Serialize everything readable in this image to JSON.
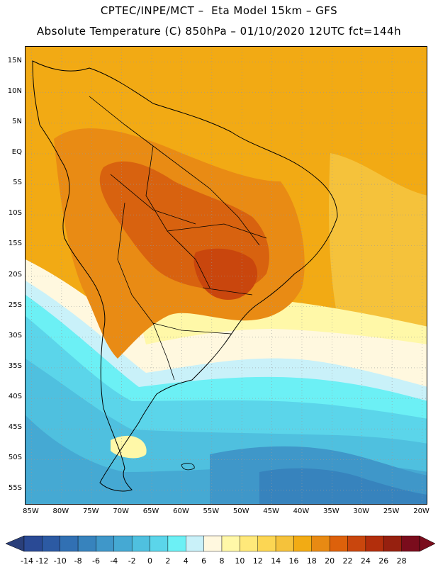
{
  "header": {
    "title_line1": "CPTEC/INPE/MCT –  Eta Model 15km – GFS",
    "title_line2": "Absolute Temperature (C) 850hPa – 01/10/2020 12UTC fct=144h"
  },
  "axes": {
    "lat_labels": [
      {
        "text": "15N",
        "value": 15
      },
      {
        "text": "10N",
        "value": 10
      },
      {
        "text": "5N",
        "value": 5
      },
      {
        "text": "EQ",
        "value": 0
      },
      {
        "text": "5S",
        "value": -5
      },
      {
        "text": "10S",
        "value": -10
      },
      {
        "text": "15S",
        "value": -15
      },
      {
        "text": "20S",
        "value": -20
      },
      {
        "text": "25S",
        "value": -25
      },
      {
        "text": "30S",
        "value": -30
      },
      {
        "text": "35S",
        "value": -35
      },
      {
        "text": "40S",
        "value": -40
      },
      {
        "text": "45S",
        "value": -45
      },
      {
        "text": "50S",
        "value": -50
      },
      {
        "text": "55S",
        "value": -55
      }
    ],
    "lon_labels": [
      {
        "text": "85W",
        "value": -85
      },
      {
        "text": "80W",
        "value": -80
      },
      {
        "text": "75W",
        "value": -75
      },
      {
        "text": "70W",
        "value": -70
      },
      {
        "text": "65W",
        "value": -65
      },
      {
        "text": "60W",
        "value": -60
      },
      {
        "text": "55W",
        "value": -55
      },
      {
        "text": "50W",
        "value": -50
      },
      {
        "text": "45W",
        "value": -45
      },
      {
        "text": "40W",
        "value": -40
      },
      {
        "text": "35W",
        "value": -35
      },
      {
        "text": "30W",
        "value": -30
      },
      {
        "text": "25W",
        "value": -25
      },
      {
        "text": "20W",
        "value": -20
      }
    ],
    "lat_range": [
      -57.5,
      17.5
    ],
    "lon_range": [
      -86,
      -19
    ]
  },
  "colorbar": {
    "ticks": [
      "-14",
      "-12",
      "-10",
      "-8",
      "-6",
      "-4",
      "-2",
      "0",
      "2",
      "4",
      "6",
      "8",
      "10",
      "12",
      "14",
      "16",
      "18",
      "20",
      "22",
      "24",
      "26",
      "28"
    ],
    "under_color": "#2a3f7a",
    "over_color": "#7a0c1c",
    "colors": [
      "#2a4a95",
      "#2c5aa3",
      "#3170b3",
      "#3783bd",
      "#3f97c9",
      "#45a9d3",
      "#4fc0df",
      "#5bd5ea",
      "#6cf0f5",
      "#c9f1f9",
      "#fff8df",
      "#fff8a8",
      "#ffe97a",
      "#fcd653",
      "#f5c23b",
      "#f2ab14",
      "#e88a13",
      "#dd610b",
      "#c9460d",
      "#b22e0c",
      "#96200f",
      "#7a0c1c"
    ]
  },
  "palette": {
    "land_outline": "#000000",
    "grid": "#999999",
    "temp_22_24": "#d8620f",
    "temp_20_22": "#e98b14",
    "temp_18_20": "#f2aa14",
    "temp_16_18": "#f5c23b",
    "temp_14_16": "#fcd653",
    "temp_10_12": "#fff8a8",
    "temp_6_8": "#fff8df",
    "temp_4_6": "#c9f1f9",
    "temp_2_4": "#6cf0f5",
    "temp_0_2": "#5bd5ea",
    "temp_m2_0": "#4fc0df",
    "temp_m4_m2": "#45a9d3",
    "temp_m6_m4": "#3f97c9",
    "temp_m8_m6": "#3783bd"
  }
}
